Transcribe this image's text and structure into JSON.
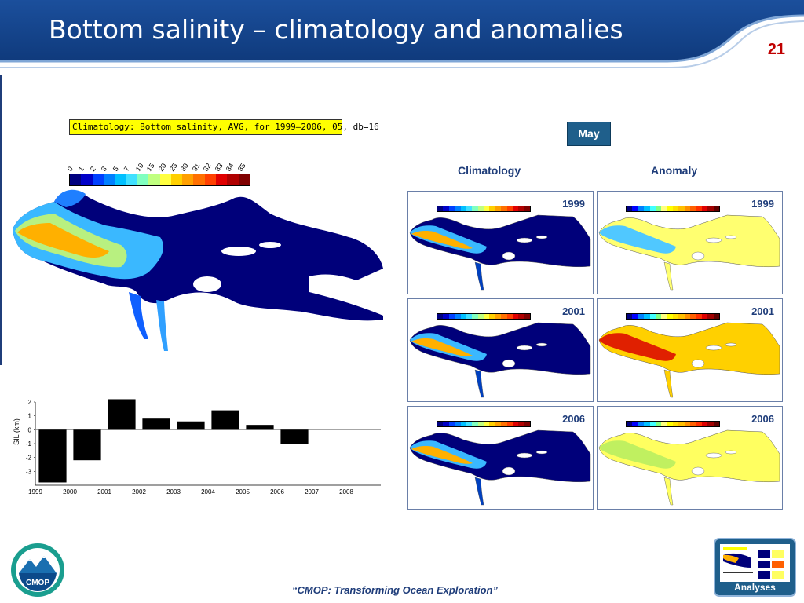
{
  "slide": {
    "title": "Bottom salinity – climatology and anomalies",
    "number": "21"
  },
  "main_figure": {
    "label": "Climatology: Bottom salinity, AVG, for 1999–2006, 05, db=16",
    "colorbar_ticks": [
      "0",
      "1",
      "2",
      "3",
      "5",
      "7",
      "10",
      "15",
      "20",
      "25",
      "30",
      "31",
      "32",
      "33",
      "34",
      "35"
    ],
    "colorbar_colors": [
      "#000080",
      "#0000c8",
      "#0040ff",
      "#0080ff",
      "#00c0ff",
      "#40e0ff",
      "#80ffc0",
      "#c0ff80",
      "#ffff40",
      "#ffd000",
      "#ffa000",
      "#ff7000",
      "#ff4000",
      "#e00000",
      "#b00000",
      "#800000"
    ]
  },
  "month_badge": "May",
  "columns": {
    "climatology": "Climatology",
    "anomaly": "Anomaly"
  },
  "panels": [
    {
      "year": "1999",
      "kind": "climatology"
    },
    {
      "year": "1999",
      "kind": "anomaly"
    },
    {
      "year": "2001",
      "kind": "climatology"
    },
    {
      "year": "2001",
      "kind": "anomaly"
    },
    {
      "year": "2006",
      "kind": "climatology"
    },
    {
      "year": "2006",
      "kind": "anomaly"
    }
  ],
  "chart_data": {
    "type": "bar",
    "categories": [
      "1999",
      "2000",
      "2001",
      "2002",
      "2003",
      "2004",
      "2005",
      "2006",
      "2007",
      "2008"
    ],
    "values": [
      -3.8,
      -2.2,
      2.2,
      0.8,
      0.6,
      1.4,
      0.35,
      -1.0,
      null,
      null
    ],
    "title": "",
    "xlabel": "",
    "ylabel": "SIL (km)",
    "ylim": [
      -4,
      2
    ],
    "yticks": [
      "2",
      "1",
      "0",
      "-1",
      "-2",
      "-3"
    ],
    "xticks": [
      "1999",
      "2000",
      "2001",
      "2002",
      "2003",
      "2004",
      "2005",
      "2006",
      "2007",
      "2008"
    ]
  },
  "footer": {
    "quote": "“CMOP: Transforming Ocean Exploration”",
    "logo_text": "CMOP",
    "analyses_label": "Analyses"
  }
}
